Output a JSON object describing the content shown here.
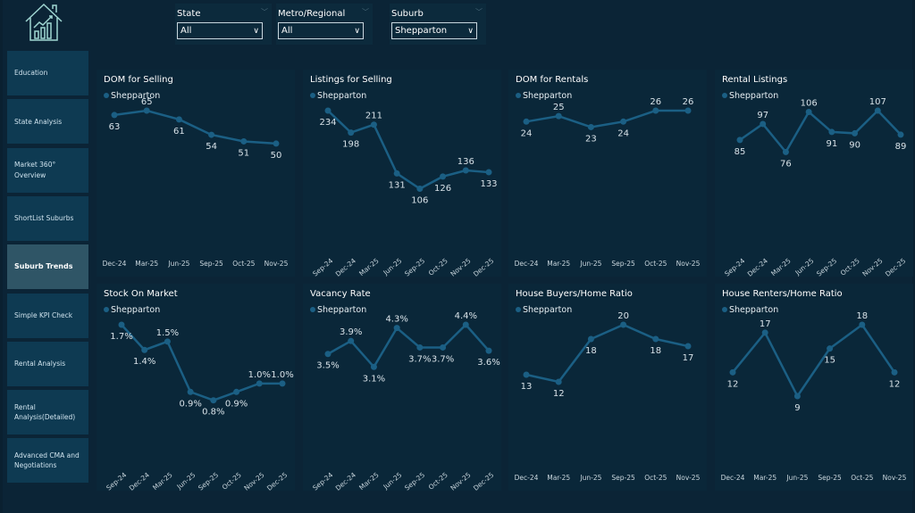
{
  "sidebar": {
    "items": [
      {
        "label": "Education"
      },
      {
        "label": "State Analysis"
      },
      {
        "label": "Market 360° Overview"
      },
      {
        "label": "ShortList Suburbs"
      },
      {
        "label": "Suburb Trends",
        "active": true
      },
      {
        "label": "Simple KPI Check"
      },
      {
        "label": "Rental Analysis"
      },
      {
        "label": "Rental Analysis(Detailed)"
      },
      {
        "label": "Advanced CMA and Negotiations"
      }
    ]
  },
  "filters": [
    {
      "label": "State",
      "value": "All"
    },
    {
      "label": "Metro/Regional",
      "value": "All"
    },
    {
      "label": "Suburb",
      "value": "Shepparton"
    }
  ],
  "colors": {
    "series": "#1b5f84",
    "background": "#0b2436",
    "panel": "#0a2739"
  },
  "chart_data": [
    {
      "type": "line",
      "title": "DOM for Selling",
      "legend": "Shepparton",
      "categories": [
        "Dec-24",
        "Mar-25",
        "Jun-25",
        "Sep-25",
        "Oct-25",
        "Nov-25"
      ],
      "values": [
        63,
        65,
        61,
        54,
        51,
        50
      ],
      "labels": [
        "63",
        "65",
        "61",
        "54",
        "51",
        "50"
      ]
    },
    {
      "type": "line",
      "title": "Listings for Selling",
      "legend": "Shepparton",
      "categories": [
        "Sep-24",
        "Dec-24",
        "Mar-25",
        "Jun-25",
        "Sep-25",
        "Oct-25",
        "Nov-25",
        "Dec-25"
      ],
      "values": [
        234,
        198,
        211,
        131,
        106,
        126,
        136,
        133
      ],
      "labels": [
        "234",
        "198",
        "211",
        "131",
        "106",
        "126",
        "136",
        "133"
      ]
    },
    {
      "type": "line",
      "title": "DOM for Rentals",
      "legend": "Shepparton",
      "categories": [
        "Dec-24",
        "Mar-25",
        "Jun-25",
        "Sep-25",
        "Oct-25",
        "Nov-25"
      ],
      "values": [
        24,
        25,
        23,
        24,
        26,
        26
      ],
      "labels": [
        "24",
        "25",
        "23",
        "24",
        "26",
        "26"
      ]
    },
    {
      "type": "line",
      "title": "Rental Listings",
      "legend": "Shepparton",
      "categories": [
        "Sep-24",
        "Dec-24",
        "Mar-25",
        "Jun-25",
        "Sep-25",
        "Oct-25",
        "Nov-25",
        "Dec-25"
      ],
      "values": [
        85,
        97,
        76,
        106,
        91,
        90,
        107,
        89
      ],
      "labels": [
        "85",
        "97",
        "76",
        "106",
        "91",
        "90",
        "107",
        "89"
      ]
    },
    {
      "type": "line",
      "title": "Stock On Market",
      "legend": "Shepparton",
      "categories": [
        "Sep-24",
        "Dec-24",
        "Mar-25",
        "Jun-25",
        "Sep-25",
        "Oct-25",
        "Nov-25",
        "Dec-25"
      ],
      "values": [
        1.7,
        1.4,
        1.5,
        0.9,
        0.8,
        0.9,
        1.0,
        1.0
      ],
      "labels": [
        "1.7%",
        "1.4%",
        "1.5%",
        "0.9%",
        "0.8%",
        "0.9%",
        "1.0%",
        "1.0%"
      ]
    },
    {
      "type": "line",
      "title": "Vacancy Rate",
      "legend": "Shepparton",
      "categories": [
        "Sep-24",
        "Dec-24",
        "Mar-25",
        "Jun-25",
        "Sep-25",
        "Oct-25",
        "Nov-25",
        "Dec-25"
      ],
      "values": [
        3.5,
        3.9,
        3.1,
        4.3,
        3.7,
        3.7,
        4.4,
        3.6
      ],
      "labels": [
        "3.5%",
        "3.9%",
        "3.1%",
        "4.3%",
        "3.7%",
        "3.7%",
        "4.4%",
        "3.6%"
      ]
    },
    {
      "type": "line",
      "title": "House Buyers/Home Ratio",
      "legend": "Shepparton",
      "categories": [
        "Dec-24",
        "Mar-25",
        "Jun-25",
        "Sep-25",
        "Oct-25",
        "Nov-25"
      ],
      "values": [
        13,
        12,
        18,
        20,
        18,
        17
      ],
      "labels": [
        "13",
        "12",
        "18",
        "20",
        "18",
        "17"
      ]
    },
    {
      "type": "line",
      "title": "House Renters/Home Ratio",
      "legend": "Shepparton",
      "categories": [
        "Dec-24",
        "Mar-25",
        "Jun-25",
        "Sep-25",
        "Oct-25",
        "Nov-25"
      ],
      "values": [
        12,
        17,
        9,
        15,
        18,
        12
      ],
      "labels": [
        "12",
        "17",
        "9",
        "15",
        "18",
        "12"
      ]
    }
  ]
}
